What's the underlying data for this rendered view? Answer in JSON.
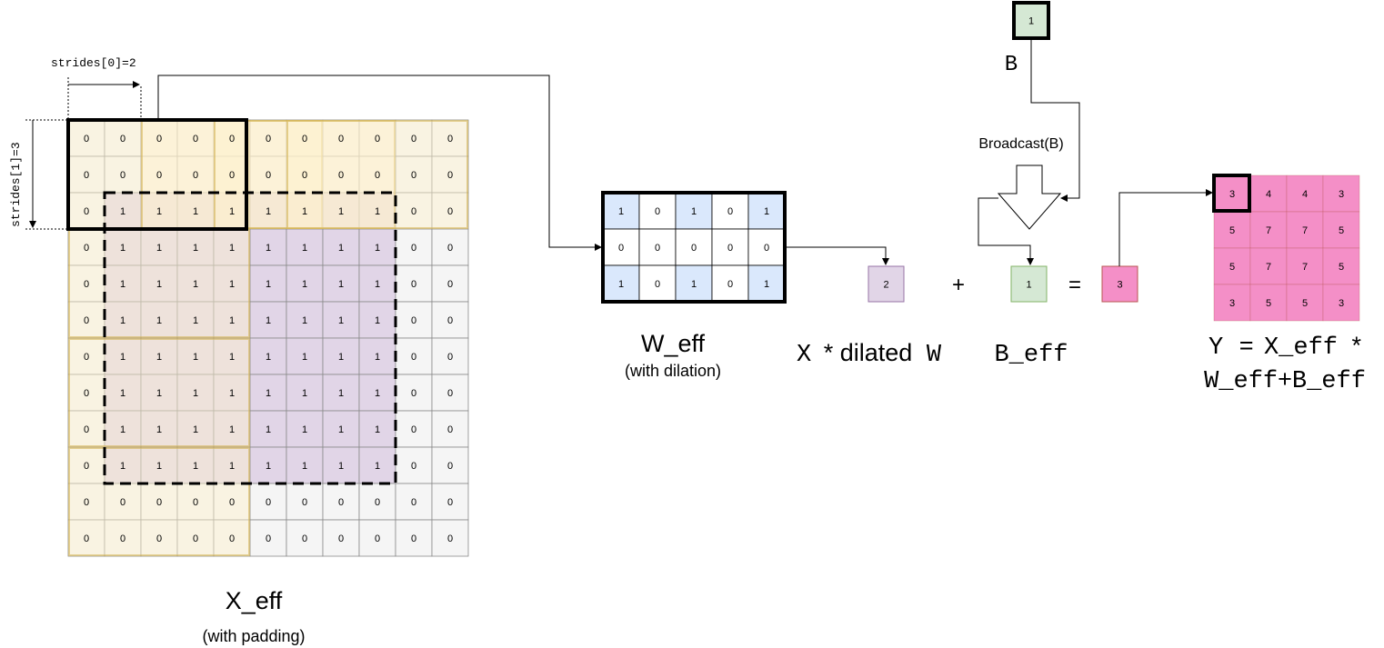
{
  "x_eff": {
    "grid": [
      [
        "0",
        "0",
        "0",
        "0",
        "0",
        "0",
        "0",
        "0",
        "0",
        "0",
        "0"
      ],
      [
        "0",
        "0",
        "0",
        "0",
        "0",
        "0",
        "0",
        "0",
        "0",
        "0",
        "0"
      ],
      [
        "0",
        "1",
        "1",
        "1",
        "1",
        "1",
        "1",
        "1",
        "1",
        "0",
        "0"
      ],
      [
        "0",
        "1",
        "1",
        "1",
        "1",
        "1",
        "1",
        "1",
        "1",
        "0",
        "0"
      ],
      [
        "0",
        "1",
        "1",
        "1",
        "1",
        "1",
        "1",
        "1",
        "1",
        "0",
        "0"
      ],
      [
        "0",
        "1",
        "1",
        "1",
        "1",
        "1",
        "1",
        "1",
        "1",
        "0",
        "0"
      ],
      [
        "0",
        "1",
        "1",
        "1",
        "1",
        "1",
        "1",
        "1",
        "1",
        "0",
        "0"
      ],
      [
        "0",
        "1",
        "1",
        "1",
        "1",
        "1",
        "1",
        "1",
        "1",
        "0",
        "0"
      ],
      [
        "0",
        "1",
        "1",
        "1",
        "1",
        "1",
        "1",
        "1",
        "1",
        "0",
        "0"
      ],
      [
        "0",
        "1",
        "1",
        "1",
        "1",
        "1",
        "1",
        "1",
        "1",
        "0",
        "0"
      ],
      [
        "0",
        "0",
        "0",
        "0",
        "0",
        "0",
        "0",
        "0",
        "0",
        "0",
        "0"
      ],
      [
        "0",
        "0",
        "0",
        "0",
        "0",
        "0",
        "0",
        "0",
        "0",
        "0",
        "0"
      ]
    ],
    "title": "X_eff",
    "subtitle": "(with padding)",
    "stride0_label": "strides[0]=2",
    "stride1_label": "strides[1]=3"
  },
  "w_eff": {
    "grid": [
      [
        "1",
        "0",
        "1",
        "0",
        "1"
      ],
      [
        "0",
        "0",
        "0",
        "0",
        "0"
      ],
      [
        "1",
        "0",
        "1",
        "0",
        "1"
      ]
    ],
    "title": "W_eff",
    "subtitle": "(with dilation)"
  },
  "equation": {
    "conv_value": "2",
    "plus": "+",
    "bias_value": "1",
    "equals": "=",
    "result_value": "3",
    "conv_label_x": "X",
    "conv_label_op": "* dilated",
    "conv_label_w": "W",
    "bias_label": "B_eff"
  },
  "bias": {
    "value": "1",
    "label": "B",
    "broadcast_label": "Broadcast(B)"
  },
  "y": {
    "grid": [
      [
        "3",
        "4",
        "4",
        "3"
      ],
      [
        "5",
        "7",
        "7",
        "5"
      ],
      [
        "5",
        "7",
        "7",
        "5"
      ],
      [
        "3",
        "5",
        "5",
        "3"
      ]
    ],
    "label_y": "Y",
    "label_eq": "=",
    "label_x": "X_eff",
    "label_star": "*",
    "label_w": "W_eff",
    "label_plus": "+",
    "label_b": "B_eff"
  },
  "colors": {
    "grid_line": "#8a8a8a",
    "pad_gray": "#f5f5f5",
    "input_purple": "#e1d5e7",
    "input_purple_border": "#9673a6",
    "window_tan": "#fff2cc",
    "window_tan_border": "#d6b656",
    "w_blue": "#dae8fc",
    "bias_green": "#d5e8d4",
    "bias_green_border": "#82b366",
    "y_pink": "#f48fc7",
    "y_pink_border": "#b85450"
  }
}
